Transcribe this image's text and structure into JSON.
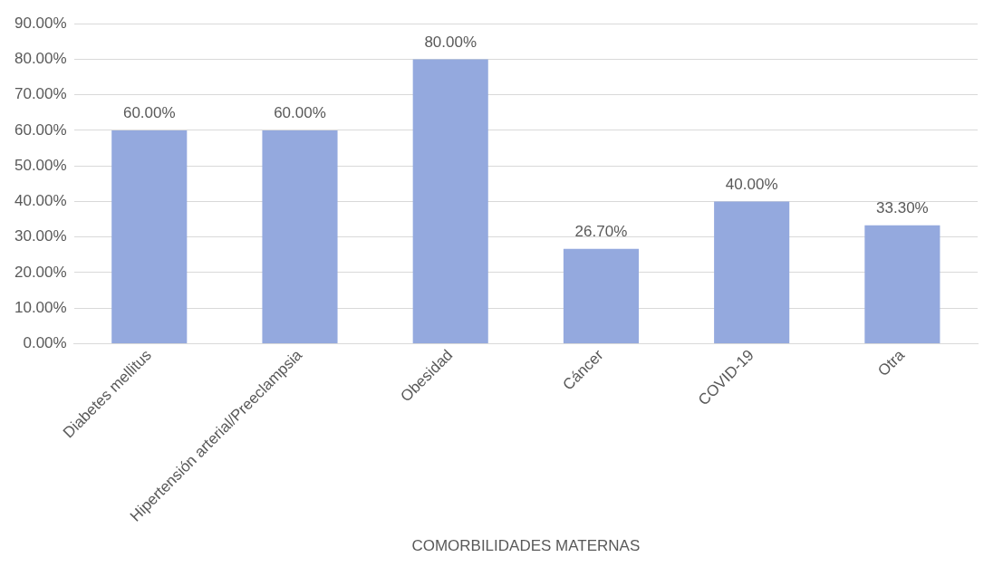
{
  "chart_data": {
    "type": "bar",
    "xlabel": "COMORBILIDADES MATERNAS",
    "categories": [
      "Diabetes mellitus",
      "Hipertensión arterial/Preeclampsia",
      "Obesidad",
      "Cáncer",
      "COVID-19",
      "Otra"
    ],
    "values": [
      60,
      60,
      80,
      26.7,
      40,
      33.3
    ],
    "value_labels": [
      "60.00%",
      "60.00%",
      "80.00%",
      "26.70%",
      "40.00%",
      "33.30%"
    ],
    "color": "#94a9de",
    "ylim": [
      0,
      90
    ],
    "yticks": [
      {
        "value": 0,
        "label": "0.00%"
      },
      {
        "value": 10,
        "label": "10.00%"
      },
      {
        "value": 20,
        "label": "20.00%"
      },
      {
        "value": 30,
        "label": "30.00%"
      },
      {
        "value": 40,
        "label": "40.00%"
      },
      {
        "value": 50,
        "label": "50.00%"
      },
      {
        "value": 60,
        "label": "60.00%"
      },
      {
        "value": 70,
        "label": "70.00%"
      },
      {
        "value": 80,
        "label": "80.00%"
      },
      {
        "value": 90,
        "label": "90.00%"
      }
    ],
    "grid": "y",
    "legend": false
  }
}
